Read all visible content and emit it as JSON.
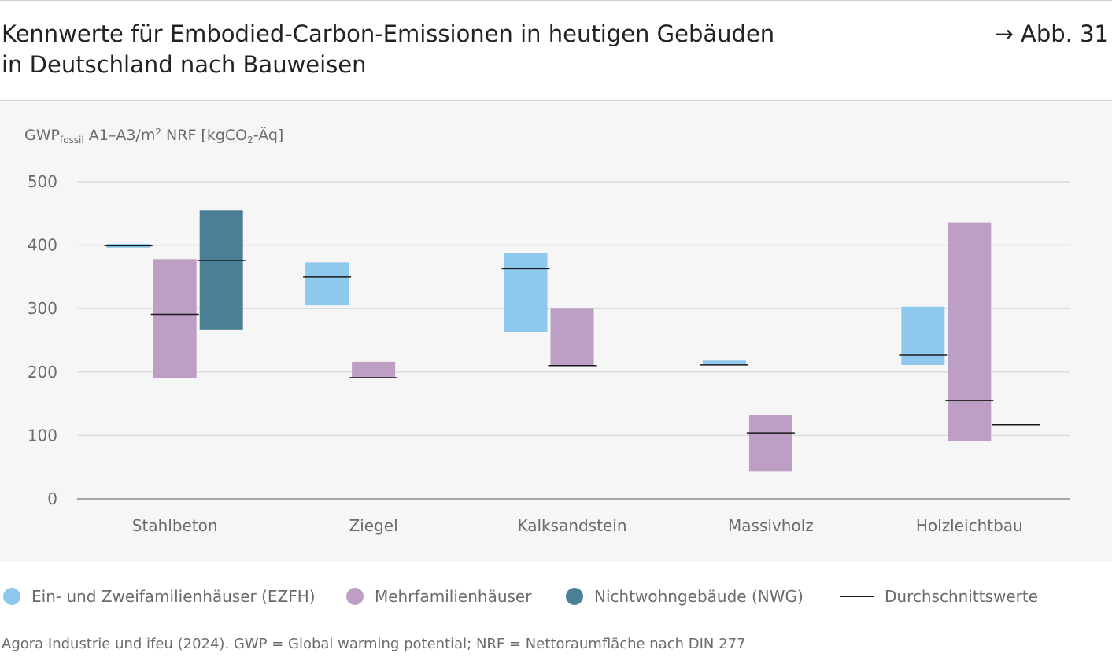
{
  "header": {
    "title_line1": "Kennwerte für Embodied-Carbon-Emissionen in heutigen Gebäuden",
    "title_line2": "in Deutschland nach Bauweisen",
    "figure_ref": "→ Abb. 31"
  },
  "axis": {
    "ylabel_main": "GWP",
    "ylabel_sub": "fossil",
    "ylabel_mid": " A1–A3/m",
    "ylabel_sup": "2",
    "ylabel_unit_a": " NRF [kgCO",
    "ylabel_unit_sub": "2",
    "ylabel_unit_b": "-Äq]"
  },
  "chart_data": {
    "type": "range-bar",
    "ylim": [
      0,
      500
    ],
    "yticks": [
      0,
      100,
      200,
      300,
      400,
      500
    ],
    "grid": true,
    "categories": [
      "Stahlbeton",
      "Ziegel",
      "Kalksandstein",
      "Massivholz",
      "Holzleichtbau"
    ],
    "series": [
      {
        "name": "Ein- und Zweifamilienhäuser (EZFH)",
        "color": "#8ec8ec",
        "ranges": [
          [
            396,
            402
          ],
          [
            305,
            373
          ],
          [
            263,
            388
          ],
          [
            211,
            218
          ],
          [
            211,
            303
          ]
        ],
        "averages": [
          399,
          350,
          363,
          211,
          227
        ]
      },
      {
        "name": "Mehrfamilienhäuser",
        "color": "#bd9fc6",
        "ranges": [
          [
            190,
            378
          ],
          [
            191,
            216
          ],
          [
            210,
            300
          ],
          [
            43,
            132
          ],
          [
            91,
            436
          ]
        ],
        "averages": [
          291,
          191,
          210,
          104,
          155
        ]
      },
      {
        "name": "Nichtwohngebäude (NWG)",
        "color": "#4b7f96",
        "ranges": [
          [
            267,
            455
          ],
          null,
          null,
          null,
          [
            117,
            117
          ]
        ],
        "averages": [
          376,
          null,
          null,
          null,
          117
        ]
      }
    ],
    "average_label": "Durchschnittswerte"
  },
  "legend": {
    "items": [
      {
        "label": "Ein- und Zweifamilienhäuser (EZFH)",
        "color": "#8ec8ec"
      },
      {
        "label": "Mehrfamilienhäuser",
        "color": "#bd9fc6"
      },
      {
        "label": "Nichtwohngebäude (NWG)",
        "color": "#4b7f96"
      },
      {
        "label": "Durchschnittswerte",
        "color": "#1a1a1a"
      }
    ]
  },
  "footer": {
    "source": "Agora Industrie und ifeu (2024). GWP = Global warming potential; NRF = Nettoraumfläche nach DIN 277"
  }
}
